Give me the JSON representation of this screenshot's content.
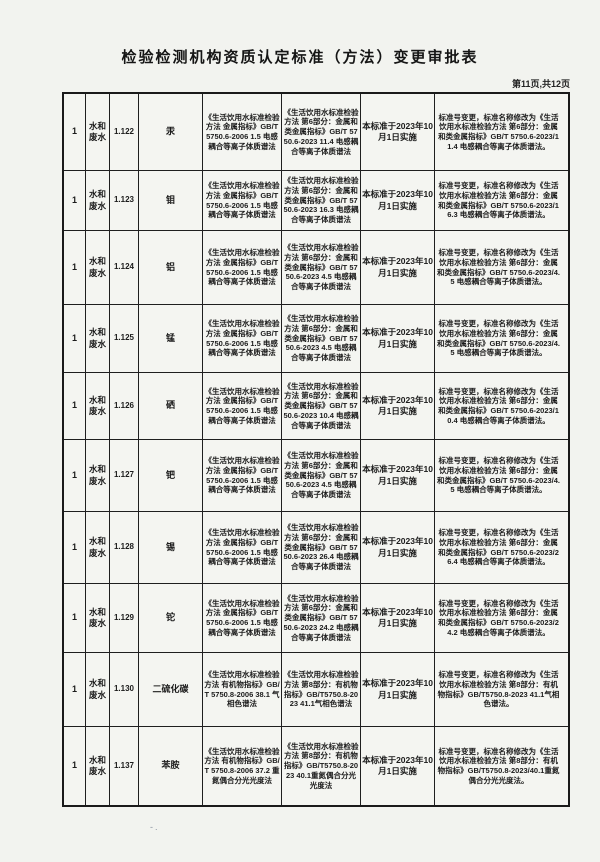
{
  "header": {
    "title": "检验检测机构资质认定标准（方法）变更审批表",
    "page_info": "第11页,共12页"
  },
  "table": {
    "rows": [
      {
        "seq": "1",
        "category": "水和废水",
        "code": "1.122",
        "param": "汞",
        "old_std": "《生活饮用水标准检验方法 金属指标》GB/T 5750.6-2006 1.5 电感耦合等离子体质谱法",
        "new_std": "《生活饮用水标准检验方法 第6部分：金属和类金属指标》GB/T 5750.6-2023 11.4 电感耦合等离子体质谱法",
        "implementation": "本标准于2023年10月1日实施",
        "change": "标准号变更，标准名称修改为《生活饮用水标准检验方法 第6部分：金属和类金属指标》GB/T 5750.6-2023/11.4 电感耦合等离子体质谱法。"
      },
      {
        "seq": "1",
        "category": "水和废水",
        "code": "1.123",
        "param": "钼",
        "old_std": "《生活饮用水标准检验方法 金属指标》GB/T 5750.6-2006 1.5 电感耦合等离子体质谱法",
        "new_std": "《生活饮用水标准检验方法 第6部分：金属和类金属指标》GB/T 5750.6-2023 16.3 电感耦合等离子体质谱法",
        "implementation": "本标准于2023年10月1日实施",
        "change": "标准号变更，标准名称修改为《生活饮用水标准检验方法 第6部分：金属和类金属指标》GB/T 5750.6-2023/16.3 电感耦合等离子体质谱法。"
      },
      {
        "seq": "1",
        "category": "水和废水",
        "code": "1.124",
        "param": "铝",
        "old_std": "《生活饮用水标准检验方法 金属指标》GB/T 5750.6-2006 1.5 电感耦合等离子体质谱法",
        "new_std": "《生活饮用水标准检验方法 第6部分：金属和类金属指标》GB/T 5750.6-2023 4.5 电感耦合等离子体质谱法",
        "implementation": "本标准于2023年10月1日实施",
        "change": "标准号变更，标准名称修改为《生活饮用水标准检验方法 第6部分：金属和类金属指标》GB/T 5750.6-2023/4.5 电感耦合等离子体质谱法。"
      },
      {
        "seq": "1",
        "category": "水和废水",
        "code": "1.125",
        "param": "锰",
        "old_std": "《生活饮用水标准检验方法 金属指标》GB/T 5750.6-2006 1.5 电感耦合等离子体质谱法",
        "new_std": "《生活饮用水标准检验方法 第6部分：金属和类金属指标》GB/T 5750.6-2023 4.5 电感耦合等离子体质谱法",
        "implementation": "本标准于2023年10月1日实施",
        "change": "标准号变更，标准名称修改为《生活饮用水标准检验方法 第6部分：金属和类金属指标》GB/T 5750.6-2023/4.5 电感耦合等离子体质谱法。"
      },
      {
        "seq": "1",
        "category": "水和废水",
        "code": "1.126",
        "param": "硒",
        "old_std": "《生活饮用水标准检验方法 金属指标》GB/T 5750.6-2006 1.5 电感耦合等离子体质谱法",
        "new_std": "《生活饮用水标准检验方法 第6部分：金属和类金属指标》GB/T 5750.6-2023 10.4 电感耦合等离子体质谱法",
        "implementation": "本标准于2023年10月1日实施",
        "change": "标准号变更，标准名称修改为《生活饮用水标准检验方法 第6部分：金属和类金属指标》GB/T 5750.6-2023/10.4 电感耦合等离子体质谱法。"
      },
      {
        "seq": "1",
        "category": "水和废水",
        "code": "1.127",
        "param": "钯",
        "old_std": "《生活饮用水标准检验方法 金属指标》GB/T 5750.6-2006 1.5 电感耦合等离子体质谱法",
        "new_std": "《生活饮用水标准检验方法 第6部分：金属和类金属指标》GB/T 5750.6-2023 4.5 电感耦合等离子体质谱法",
        "implementation": "本标准于2023年10月1日实施",
        "change": "标准号变更，标准名称修改为《生活饮用水标准检验方法 第6部分：金属和类金属指标》GB/T 5750.6-2023/4.5 电感耦合等离子体质谱法。"
      },
      {
        "seq": "1",
        "category": "水和废水",
        "code": "1.128",
        "param": "锡",
        "old_std": "《生活饮用水标准检验方法 金属指标》GB/T 5750.6-2006 1.5 电感耦合等离子体质谱法",
        "new_std": "《生活饮用水标准检验方法 第6部分：金属和类金属指标》GB/T 5750.6-2023 26.4 电感耦合等离子体质谱法",
        "implementation": "本标准于2023年10月1日实施",
        "change": "标准号变更，标准名称修改为《生活饮用水标准检验方法 第6部分：金属和类金属指标》GB/T 5750.6-2023/26.4 电感耦合等离子体质谱法。"
      },
      {
        "seq": "1",
        "category": "水和废水",
        "code": "1.129",
        "param": "铊",
        "old_std": "《生活饮用水标准检验方法 金属指标》GB/T 5750.6-2006 1.5 电感耦合等离子体质谱法",
        "new_std": "《生活饮用水标准检验方法 第6部分：金属和类金属指标》GB/T 5750.6-2023 24.2 电感耦合等离子体质谱法",
        "implementation": "本标准于2023年10月1日实施",
        "change": "标准号变更，标准名称修改为《生活饮用水标准检验方法 第6部分：金属和类金属指标》GB/T 5750.6-2023/24.2 电感耦合等离子体质谱法。"
      },
      {
        "seq": "1",
        "category": "水和废水",
        "code": "1.130",
        "param": "二硫化碳",
        "old_std": "《生活饮用水标准检验方法 有机物指标》GB/T 5750.8-2006 38.1 气相色谱法",
        "new_std": "《生活饮用水标准检验方法 第8部分：有机物指标》GB/T5750.8-2023 41.1气相色谱法",
        "implementation": "本标准于2023年10月1日实施",
        "change": "标准号变更，标准名称修改为《生活饮用水标准检验方法 第8部分：有机物指标》GB/T5750.8-2023 41.1气相色谱法。"
      },
      {
        "seq": "1",
        "category": "水和废水",
        "code": "1.137",
        "param": "苯胺",
        "old_std": "《生活饮用水标准检验方法 有机物指标》GB/T 5750.8-2006 37.2 重氮偶合分光光度法",
        "new_std": "《生活饮用水标准检验方法 第8部分：有机物指标》GB/T5750.8-2023 40.1重氮偶合分光光度法",
        "implementation": "本标准于2023年10月1日实施",
        "change": "标准号变更，标准名称修改为《生活饮用水标准检验方法 第8部分：有机物指标》GB/T5750.8-2023/40.1重氮偶合分光光度法。"
      }
    ]
  },
  "footer": {
    "smudge": "-."
  }
}
